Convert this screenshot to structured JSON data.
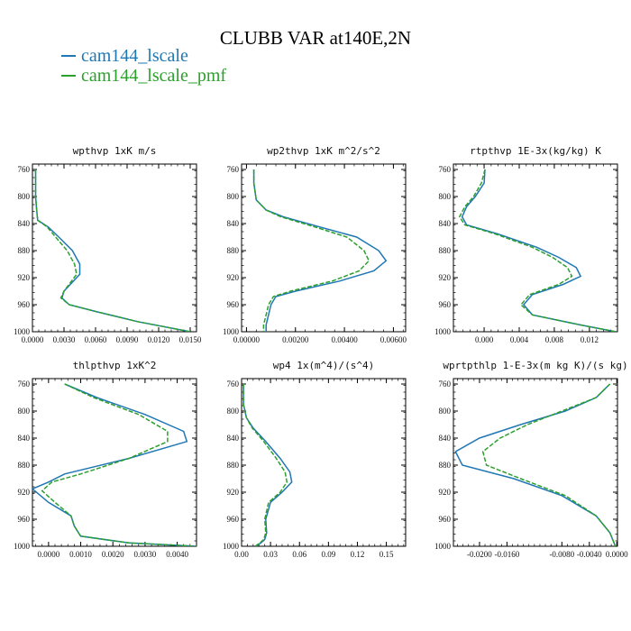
{
  "title": "CLUBB VAR at140E,2N",
  "legend": [
    {
      "name": "cam144_lscale",
      "color": "#1f77b4",
      "dashed": false
    },
    {
      "name": "cam144_lscale_pmf",
      "color": "#2ca02c",
      "dashed": true
    }
  ],
  "chart_data": [
    {
      "type": "line",
      "title": "wpthvp  1xK m/s",
      "xlim": [
        0.0,
        0.0156
      ],
      "xticks": [
        0.0,
        0.003,
        0.006,
        0.009,
        0.012,
        0.015
      ],
      "xtick_labels": [
        "0.0000",
        "0.0030",
        "0.0060",
        "0.0090",
        "0.0120",
        "0.0150"
      ],
      "ylim": [
        1000,
        752
      ],
      "yticks": [
        760,
        800,
        840,
        880,
        920,
        960,
        1000
      ],
      "series": [
        {
          "name": "cam144_lscale",
          "x": [
            0.0003,
            0.0003,
            0.0003,
            0.0004,
            0.0005,
            0.0015,
            0.0025,
            0.0038,
            0.0045,
            0.0045,
            0.003,
            0.0028,
            0.0035,
            0.006,
            0.01,
            0.015
          ],
          "y": [
            760,
            780,
            800,
            820,
            835,
            845,
            860,
            880,
            900,
            915,
            940,
            950,
            960,
            970,
            985,
            1000
          ]
        },
        {
          "name": "cam144_lscale_pmf",
          "x": [
            0.0003,
            0.0003,
            0.0003,
            0.0004,
            0.0005,
            0.0014,
            0.0022,
            0.0033,
            0.004,
            0.0042,
            0.003,
            0.0027,
            0.0035,
            0.006,
            0.01,
            0.015
          ],
          "y": [
            760,
            780,
            800,
            820,
            835,
            845,
            860,
            880,
            900,
            915,
            940,
            950,
            960,
            970,
            985,
            1000
          ]
        }
      ]
    },
    {
      "type": "line",
      "title": "wp2thvp  1xK m^2/s^2",
      "xlim": [
        -0.0002,
        0.0065
      ],
      "xticks": [
        0.0,
        0.002,
        0.004,
        0.006
      ],
      "xtick_labels": [
        "0.00000",
        "0.00200",
        "0.00400",
        "0.00600"
      ],
      "ylim": [
        1000,
        752
      ],
      "yticks": [
        760,
        800,
        840,
        880,
        920,
        960,
        1000
      ],
      "series": [
        {
          "name": "cam144_lscale",
          "x": [
            0.0003,
            0.0003,
            0.0004,
            0.0008,
            0.0015,
            0.003,
            0.0045,
            0.0054,
            0.0057,
            0.0052,
            0.0038,
            0.002,
            0.0012,
            0.001,
            0.0009,
            0.0008,
            0.0008
          ],
          "y": [
            760,
            780,
            805,
            820,
            830,
            845,
            860,
            880,
            895,
            910,
            925,
            940,
            948,
            960,
            975,
            990,
            1000
          ]
        },
        {
          "name": "cam144_lscale_pmf",
          "x": [
            0.0003,
            0.0003,
            0.0004,
            0.0008,
            0.0014,
            0.0028,
            0.0041,
            0.0048,
            0.005,
            0.0046,
            0.0035,
            0.0018,
            0.0011,
            0.0009,
            0.0008,
            0.0007,
            0.0007
          ],
          "y": [
            760,
            780,
            805,
            820,
            830,
            845,
            860,
            880,
            895,
            910,
            925,
            940,
            948,
            960,
            975,
            990,
            1000
          ]
        }
      ]
    },
    {
      "type": "line",
      "title": "rtpthvp  1E-3x(kg/kg) K",
      "xlim": [
        -0.0035,
        0.0152
      ],
      "xticks": [
        0.0,
        0.004,
        0.008,
        0.012
      ],
      "xtick_labels": [
        "0.000",
        "0.004",
        "0.008",
        "0.012"
      ],
      "ylim": [
        1000,
        752
      ],
      "yticks": [
        760,
        800,
        840,
        880,
        920,
        960,
        1000
      ],
      "series": [
        {
          "name": "cam144_lscale",
          "x": [
            0.0001,
            0.0,
            -0.001,
            -0.002,
            -0.0025,
            -0.002,
            0.0015,
            0.006,
            0.0085,
            0.0105,
            0.011,
            0.009,
            0.0055,
            0.0045,
            0.0055,
            0.011,
            0.015
          ],
          "y": [
            760,
            780,
            800,
            815,
            830,
            842,
            855,
            875,
            890,
            905,
            918,
            930,
            945,
            960,
            975,
            990,
            1000
          ]
        },
        {
          "name": "cam144_lscale_pmf",
          "x": [
            0.0001,
            -0.0003,
            -0.0012,
            -0.0022,
            -0.0028,
            -0.0022,
            0.0012,
            0.0055,
            0.0078,
            0.0095,
            0.01,
            0.0085,
            0.0052,
            0.0042,
            0.0055,
            0.011,
            0.015
          ],
          "y": [
            760,
            780,
            800,
            815,
            830,
            842,
            855,
            875,
            890,
            905,
            918,
            930,
            945,
            960,
            975,
            990,
            1000
          ]
        }
      ]
    },
    {
      "type": "line",
      "title": "thlpthvp  1xK^2",
      "xlim": [
        -0.0005,
        0.0046
      ],
      "xticks": [
        0.0,
        0.001,
        0.002,
        0.003,
        0.004
      ],
      "xtick_labels": [
        "0.0000",
        "0.0010",
        "0.0020",
        "0.0030",
        "0.0040"
      ],
      "ylim": [
        1000,
        752
      ],
      "yticks": [
        760,
        800,
        840,
        880,
        920,
        960,
        1000
      ],
      "series": [
        {
          "name": "cam144_lscale",
          "x": [
            0.0005,
            0.0015,
            0.003,
            0.0042,
            0.0043,
            0.0025,
            0.0005,
            0.0,
            -0.0005,
            0.0,
            0.0007,
            0.0008,
            0.001,
            0.0025,
            0.0046
          ],
          "y": [
            760,
            780,
            805,
            830,
            845,
            870,
            893,
            905,
            915,
            935,
            955,
            970,
            985,
            995,
            1000
          ]
        },
        {
          "name": "cam144_lscale_pmf",
          "x": [
            0.0005,
            0.0014,
            0.0028,
            0.0037,
            0.0037,
            0.0025,
            0.001,
            0.0001,
            -0.0002,
            0.0002,
            0.0007,
            0.0008,
            0.001,
            0.0025,
            0.0046
          ],
          "y": [
            760,
            780,
            805,
            830,
            845,
            870,
            893,
            905,
            918,
            935,
            955,
            970,
            985,
            995,
            1000
          ]
        }
      ]
    },
    {
      "type": "line",
      "title": "wp4  1x(m^4)/(s^4)",
      "xlim": [
        0.0,
        0.17
      ],
      "xticks": [
        0.0,
        0.03,
        0.06,
        0.09,
        0.12,
        0.15
      ],
      "xtick_labels": [
        "0.00",
        "0.03",
        "0.06",
        "0.09",
        "0.12",
        "0.15"
      ],
      "ylim": [
        1000,
        752
      ],
      "yticks": [
        760,
        800,
        840,
        880,
        920,
        960,
        1000
      ],
      "series": [
        {
          "name": "cam144_lscale",
          "x": [
            0.002,
            0.002,
            0.005,
            0.012,
            0.025,
            0.04,
            0.05,
            0.052,
            0.042,
            0.03,
            0.025,
            0.026,
            0.024,
            0.02,
            0.015
          ],
          "y": [
            760,
            790,
            810,
            825,
            845,
            870,
            890,
            905,
            920,
            935,
            960,
            980,
            990,
            995,
            1000
          ]
        },
        {
          "name": "cam144_lscale_pmf",
          "x": [
            0.002,
            0.002,
            0.005,
            0.011,
            0.023,
            0.036,
            0.045,
            0.047,
            0.04,
            0.028,
            0.024,
            0.025,
            0.023,
            0.019,
            0.014
          ],
          "y": [
            760,
            790,
            810,
            825,
            845,
            870,
            890,
            905,
            920,
            935,
            960,
            980,
            990,
            995,
            1000
          ]
        }
      ]
    },
    {
      "type": "line",
      "title": "wprtpthlp  1-E-3x(m kg K)/(s kg)",
      "xlim": [
        -0.0238,
        0.0001
      ],
      "xticks": [
        -0.02,
        -0.016,
        -0.008,
        -0.004,
        0.0
      ],
      "xtick_labels": [
        "-0.0200",
        "-0.0160",
        "-0.0080",
        "-0.0040",
        "0.0000"
      ],
      "ylim": [
        1000,
        752
      ],
      "yticks": [
        760,
        800,
        840,
        880,
        920,
        960,
        1000
      ],
      "series": [
        {
          "name": "cam144_lscale",
          "x": [
            -0.001,
            -0.003,
            -0.0075,
            -0.014,
            -0.02,
            -0.0235,
            -0.0225,
            -0.015,
            -0.008,
            -0.003,
            -0.001,
            -0.0002
          ],
          "y": [
            760,
            780,
            800,
            820,
            840,
            860,
            880,
            900,
            925,
            955,
            980,
            1000
          ]
        },
        {
          "name": "cam144_lscale_pmf",
          "x": [
            -0.001,
            -0.003,
            -0.008,
            -0.013,
            -0.017,
            -0.0195,
            -0.019,
            -0.014,
            -0.0075,
            -0.003,
            -0.001,
            -0.0002
          ],
          "y": [
            760,
            780,
            800,
            820,
            840,
            860,
            880,
            900,
            925,
            955,
            980,
            1000
          ]
        }
      ]
    }
  ]
}
